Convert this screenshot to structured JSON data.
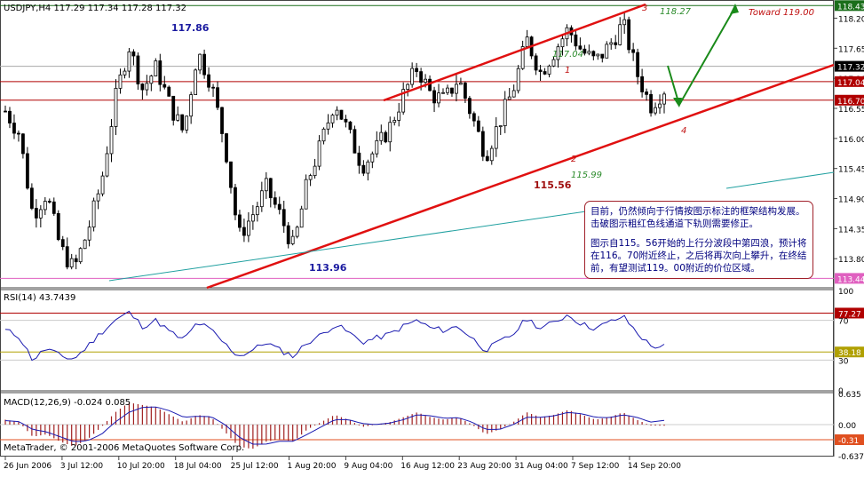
{
  "chart_data": [
    {
      "type": "candlestick",
      "symbol_header": "USDJPY,H4  117.29 117.34 117.28 117.32",
      "ylim": [
        113.3,
        118.5
      ],
      "y_ticks": [
        "118.20",
        "117.65",
        "117.10",
        "116.55",
        "116.00",
        "115.45",
        "114.90",
        "114.35",
        "113.80"
      ],
      "price_labels": [
        {
          "value": 118.43,
          "text": "118.43",
          "color": "#1a6e1a"
        },
        {
          "value": 117.32,
          "text": "117.32",
          "color": "#000000"
        },
        {
          "value": 117.04,
          "text": "117.04",
          "color": "#b00000"
        },
        {
          "value": 116.7,
          "text": "116.70",
          "color": "#b00000"
        },
        {
          "value": 113.44,
          "text": "113.44",
          "color": "#e060c0"
        }
      ],
      "horizontal_lines": [
        118.43,
        117.32,
        117.04,
        116.7,
        113.44
      ],
      "annotations": [
        {
          "text": "117.86",
          "color": "#1a1aa0"
        },
        {
          "text": "113.96",
          "color": "#1a1aa0"
        },
        {
          "text": "115.56",
          "color": "#a01010"
        },
        {
          "text": "117.04",
          "color": "#2a8a2a"
        },
        {
          "text": "115.99",
          "color": "#2a8a2a"
        },
        {
          "text": "118.27",
          "color": "#2a8a2a"
        },
        {
          "text": "Toward  119.00",
          "color": "#c01010"
        },
        {
          "text": "1",
          "color": "#c01010"
        },
        {
          "text": "2",
          "color": "#c01010"
        },
        {
          "text": "3",
          "color": "#c01010"
        },
        {
          "text": "4",
          "color": "#c01010"
        }
      ],
      "trendlines": [
        {
          "name": "channel-upper",
          "color": "#e01010"
        },
        {
          "name": "channel-lower",
          "color": "#e01010"
        },
        {
          "name": "support-teal",
          "color": "#20a0a0"
        },
        {
          "name": "projection-arrow",
          "color": "#1a8a1a"
        }
      ],
      "series_shape": [
        116.5,
        116.1,
        114.6,
        115.0,
        114.0,
        113.6,
        114.3,
        115.2,
        116.7,
        117.7,
        116.9,
        117.3,
        116.6,
        116.1,
        117.6,
        117.0,
        115.9,
        114.2,
        114.6,
        115.1,
        114.6,
        114.0,
        115.2,
        115.9,
        116.7,
        116.1,
        115.5,
        115.8,
        116.2,
        116.8,
        117.3,
        116.8,
        116.7,
        117.1,
        116.4,
        115.7,
        116.3,
        116.9,
        117.8,
        117.2,
        117.6,
        118.0,
        117.6,
        117.4,
        117.7,
        118.1,
        117.2,
        116.6,
        116.9
      ]
    },
    {
      "type": "line",
      "header": "RSI(14) 43.7439",
      "ylim": [
        0,
        100
      ],
      "levels": [
        {
          "value": 77.27,
          "text": "77.27",
          "color": "#b00000"
        },
        {
          "value": 38.18,
          "text": "38.18",
          "color": "#b0a000"
        }
      ],
      "y_ticks": [
        "100",
        "70",
        "30",
        "0"
      ],
      "series": [
        {
          "name": "RSI",
          "color": "#1a1ab0",
          "values": [
            60,
            54,
            30,
            42,
            34,
            31,
            44,
            58,
            70,
            78,
            64,
            70,
            58,
            50,
            68,
            60,
            46,
            34,
            40,
            48,
            40,
            34,
            48,
            55,
            66,
            58,
            48,
            52,
            56,
            64,
            70,
            62,
            60,
            64,
            52,
            40,
            48,
            56,
            72,
            62,
            68,
            76,
            66,
            62,
            68,
            74,
            58,
            44,
            43.7
          ]
        }
      ]
    },
    {
      "type": "bar",
      "header": "MACD(12,26,9) -0.024 0.085",
      "footer": "MetaTrader, © 2001-2006 MetaQuotes Software Corp.",
      "ylim": [
        -0.637,
        0.635
      ],
      "y_ticks": [
        "0.635",
        "0.00",
        "-0.637"
      ],
      "levels": [
        {
          "value": -0.31,
          "text": "-0.31",
          "color": "#e05020"
        }
      ],
      "values": [
        0.1,
        0.05,
        -0.25,
        -0.2,
        -0.35,
        -0.45,
        -0.3,
        -0.05,
        0.25,
        0.45,
        0.4,
        0.35,
        0.2,
        0.05,
        0.2,
        0.15,
        -0.15,
        -0.45,
        -0.5,
        -0.35,
        -0.3,
        -0.35,
        -0.1,
        0.05,
        0.2,
        0.1,
        -0.05,
        0.0,
        0.05,
        0.15,
        0.25,
        0.15,
        0.1,
        0.15,
        0.0,
        -0.2,
        -0.1,
        0.05,
        0.25,
        0.15,
        0.2,
        0.3,
        0.2,
        0.1,
        0.15,
        0.25,
        0.1,
        -0.02,
        -0.024
      ],
      "signal": [
        0.08,
        0.06,
        -0.1,
        -0.15,
        -0.25,
        -0.35,
        -0.33,
        -0.2,
        0.05,
        0.25,
        0.35,
        0.36,
        0.28,
        0.15,
        0.17,
        0.16,
        0.0,
        -0.25,
        -0.4,
        -0.4,
        -0.34,
        -0.34,
        -0.2,
        -0.05,
        0.1,
        0.1,
        0.02,
        0.0,
        0.03,
        0.1,
        0.2,
        0.18,
        0.13,
        0.14,
        0.05,
        -0.1,
        -0.1,
        0.0,
        0.15,
        0.15,
        0.18,
        0.25,
        0.22,
        0.15,
        0.14,
        0.2,
        0.15,
        0.05,
        0.085
      ]
    }
  ],
  "x_axis": {
    "labels": [
      "26 Jun 2006",
      "3 Jul 12:00",
      "10 Jul 20:00",
      "18 Jul 04:00",
      "25 Jul 12:00",
      "1 Aug 20:00",
      "9 Aug 04:00",
      "16 Aug 12:00",
      "23 Aug 20:00",
      "31 Aug 04:00",
      "7 Sep 12:00",
      "14 Sep 20:00"
    ]
  },
  "note": {
    "paragraph1": "目前，仍然倾向于行情按图示标注的框架结构发展。击破图示粗红色线通道下轨则需要修正。",
    "paragraph2": "图示自115。56开始的上行分波段中第四浪，预计将在116。70附近终止，之后将再次向上攀升，在终结前，有望测试119。00附近的价位区域。"
  }
}
